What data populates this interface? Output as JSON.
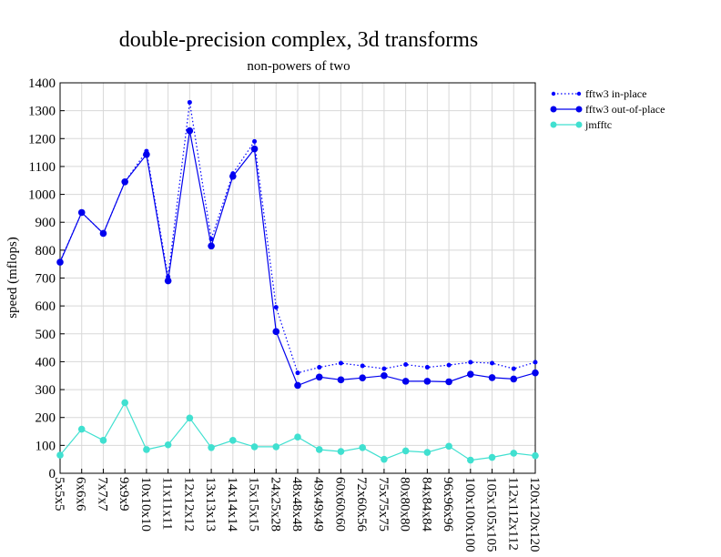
{
  "chart_data": {
    "type": "line",
    "title": "double-precision complex, 3d transforms",
    "subtitle": "non-powers of two",
    "xlabel": "",
    "ylabel": "speed (mflops)",
    "ylim": [
      0,
      1400
    ],
    "yticks": [
      0,
      100,
      200,
      300,
      400,
      500,
      600,
      700,
      800,
      900,
      1000,
      1100,
      1200,
      1300,
      1400
    ],
    "grid": true,
    "legend_position": "right",
    "categories": [
      "5x5x5",
      "6x6x6",
      "7x7x7",
      "9x9x9",
      "10x10x10",
      "11x11x11",
      "12x12x12",
      "13x13x13",
      "14x14x14",
      "15x15x15",
      "24x25x28",
      "48x48x48",
      "49x49x49",
      "60x60x60",
      "72x60x56",
      "75x75x75",
      "80x80x80",
      "84x84x84",
      "96x96x96",
      "100x100x100",
      "105x105x105",
      "112x112x112",
      "120x120x120"
    ],
    "series": [
      {
        "name": "fftw3 in-place",
        "color": "#0000ff",
        "style": "dotted",
        "marker": "small-dot",
        "values": [
          760,
          935,
          860,
          1045,
          1155,
          705,
          1330,
          840,
          1075,
          1190,
          595,
          360,
          380,
          395,
          385,
          375,
          390,
          380,
          388,
          398,
          395,
          375,
          398
        ]
      },
      {
        "name": "fftw3 out-of-place",
        "color": "#0000ee",
        "style": "solid",
        "marker": "dot",
        "values": [
          757,
          935,
          860,
          1045,
          1143,
          690,
          1228,
          815,
          1065,
          1163,
          508,
          315,
          345,
          335,
          342,
          350,
          330,
          330,
          328,
          355,
          343,
          338,
          360
        ]
      },
      {
        "name": "jmfftc",
        "color": "#40e0d0",
        "style": "solid",
        "marker": "dot",
        "values": [
          65,
          158,
          118,
          253,
          85,
          102,
          198,
          92,
          118,
          95,
          95,
          130,
          85,
          78,
          92,
          50,
          80,
          75,
          97,
          47,
          57,
          72,
          63
        ]
      }
    ]
  }
}
